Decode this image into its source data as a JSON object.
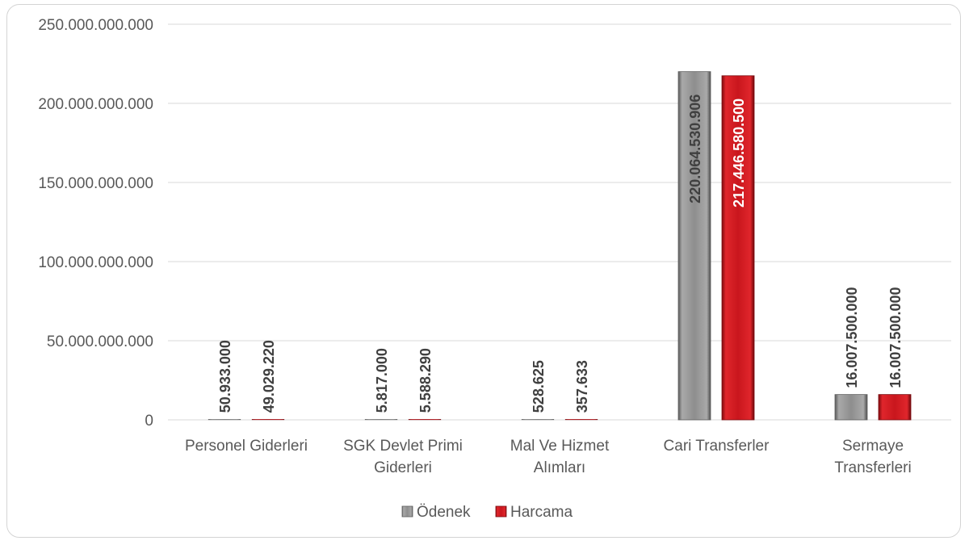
{
  "chart_data": {
    "type": "bar",
    "categories": [
      [
        "Personel Giderleri"
      ],
      [
        "SGK Devlet Primi",
        "Giderleri"
      ],
      [
        "Mal Ve Hizmet",
        "Alımları"
      ],
      [
        "Cari Transferler"
      ],
      [
        "Sermaye",
        "Transferleri"
      ]
    ],
    "series": [
      {
        "name": "Ödenek",
        "color": "#8c8c8c",
        "values": [
          50933000,
          5817000,
          528625,
          220064530906,
          16007500000
        ],
        "labels": [
          "50.933.000",
          "5.817.000",
          "528.625",
          "220.064.530.906",
          "16.007.500.000"
        ]
      },
      {
        "name": "Harcama",
        "color": "#c0141c",
        "values": [
          49029220,
          5588290,
          357633,
          217446580500,
          16007500000
        ],
        "labels": [
          "49.029.220",
          "5.588.290",
          "357.633",
          "217.446.580.500",
          "16.007.500.000"
        ]
      }
    ],
    "ylim": [
      0,
      250000000000
    ],
    "yticks": [
      0,
      50000000000,
      100000000000,
      150000000000,
      200000000000,
      250000000000
    ],
    "ytick_labels": [
      "0",
      "50.000.000.000",
      "100.000.000.000",
      "150.000.000.000",
      "200.000.000.000",
      "250.000.000.000"
    ],
    "grid": true,
    "legend": "bottom"
  }
}
